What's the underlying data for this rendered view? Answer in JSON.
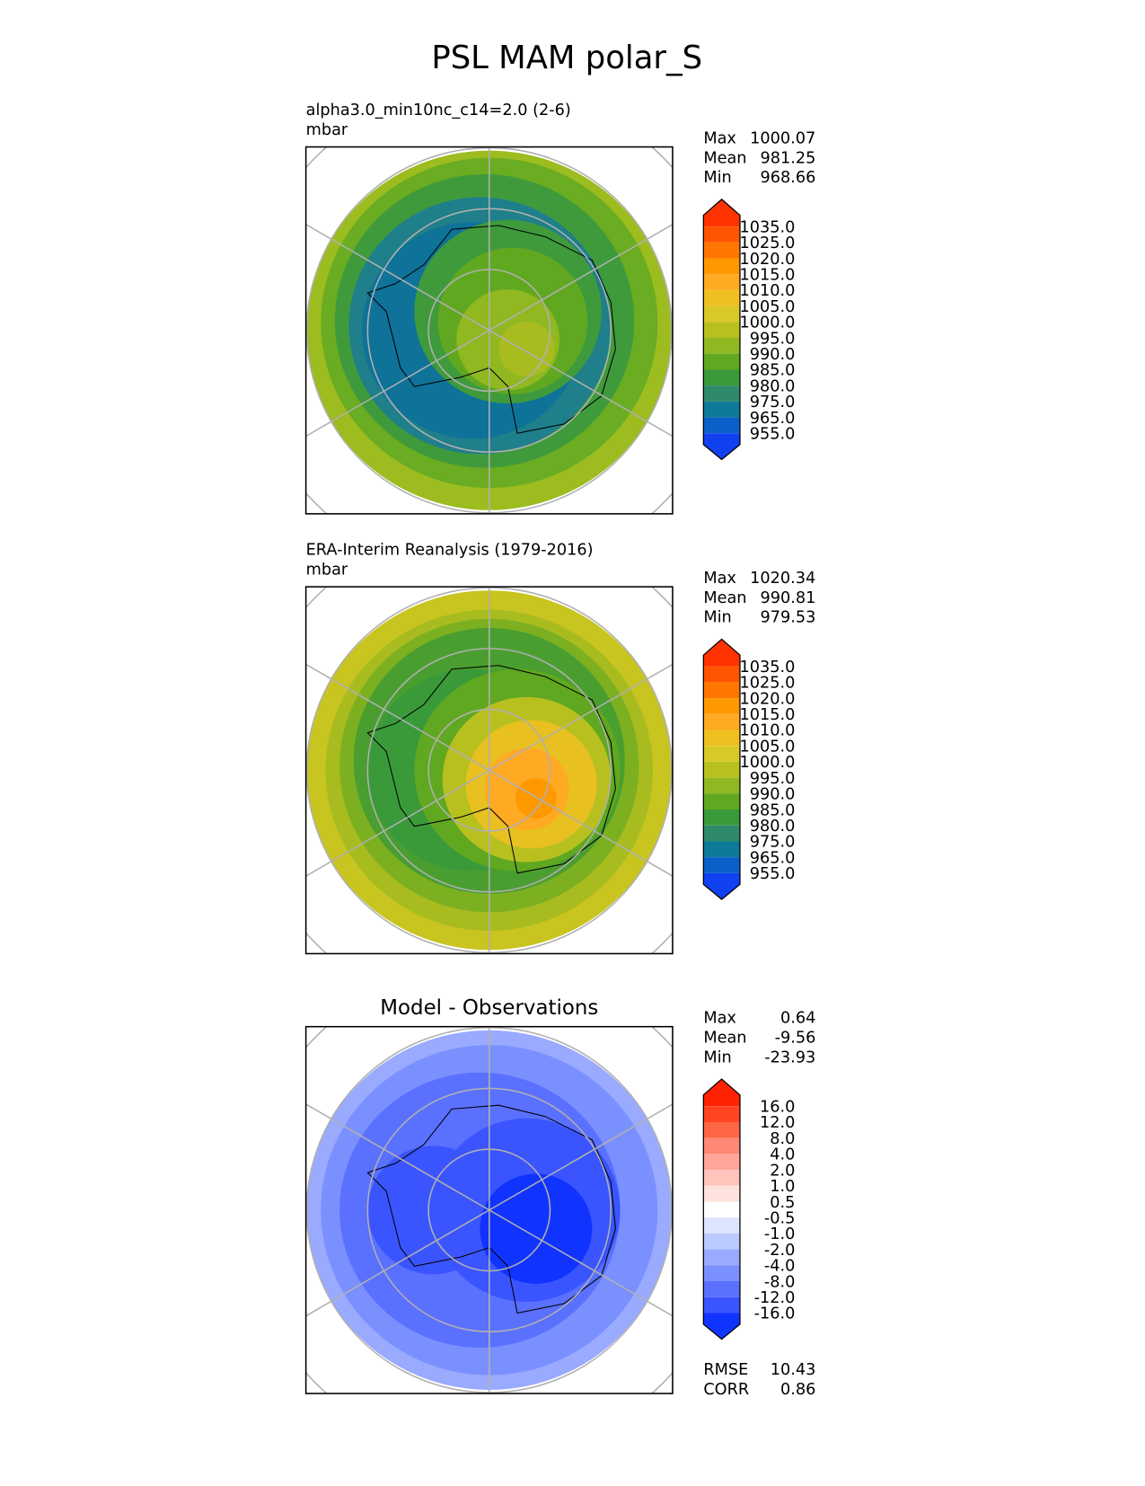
{
  "title": "PSL MAM polar_S",
  "panels": [
    {
      "title": "alpha3.0_min10nc_c14=2.0 (2-6)",
      "units": "mbar",
      "stats": [
        {
          "label": "Max",
          "value": "1000.07"
        },
        {
          "label": "Mean",
          "value": "981.25"
        },
        {
          "label": "Min",
          "value": "968.66"
        }
      ],
      "colorbar": {
        "levels": [
          "1035.0",
          "1025.0",
          "1020.0",
          "1015.0",
          "1010.0",
          "1005.0",
          "1000.0",
          "995.0",
          "990.0",
          "985.0",
          "980.0",
          "975.0",
          "965.0",
          "955.0"
        ],
        "colors": [
          "#ff3300",
          "#ff5500",
          "#ff7700",
          "#ff9900",
          "#ffaa22",
          "#f0c020",
          "#d8c828",
          "#b8c020",
          "#90b820",
          "#60a820",
          "#3a9a3a",
          "#2e8a6a",
          "#0e7a9a",
          "#0a60c8",
          "#1040f0"
        ]
      }
    },
    {
      "title": "ERA-Interim Reanalysis (1979-2016)",
      "units": "mbar",
      "stats": [
        {
          "label": "Max",
          "value": "1020.34"
        },
        {
          "label": "Mean",
          "value": "990.81"
        },
        {
          "label": "Min",
          "value": "979.53"
        }
      ],
      "colorbar": {
        "levels": [
          "1035.0",
          "1025.0",
          "1020.0",
          "1015.0",
          "1010.0",
          "1005.0",
          "1000.0",
          "995.0",
          "990.0",
          "985.0",
          "980.0",
          "975.0",
          "965.0",
          "955.0"
        ],
        "colors": [
          "#ff3300",
          "#ff5500",
          "#ff7700",
          "#ff9900",
          "#ffaa22",
          "#f0c020",
          "#d8c828",
          "#b8c020",
          "#90b820",
          "#60a820",
          "#3a9a3a",
          "#2e8a6a",
          "#0e7a9a",
          "#0a60c8",
          "#1040f0"
        ]
      }
    },
    {
      "title": "Model - Observations",
      "stats": [
        {
          "label": "Max",
          "value": "0.64"
        },
        {
          "label": "Mean",
          "value": "-9.56"
        },
        {
          "label": "Min",
          "value": "-23.93"
        }
      ],
      "colorbar": {
        "levels": [
          "16.0",
          "12.0",
          "8.0",
          "4.0",
          "2.0",
          "1.0",
          "0.5",
          "-0.5",
          "-1.0",
          "-2.0",
          "-4.0",
          "-8.0",
          "-12.0",
          "-16.0"
        ],
        "colors": [
          "#ff2200",
          "#ff4422",
          "#ff6644",
          "#ff8877",
          "#ffa599",
          "#ffc4bb",
          "#ffe2dd",
          "#ffffff",
          "#dde4ff",
          "#bbcaff",
          "#99aaff",
          "#7b90ff",
          "#5a70ff",
          "#3a55ff",
          "#1133ff"
        ]
      },
      "extra": [
        {
          "label": "RMSE",
          "value": "10.43"
        },
        {
          "label": "CORR",
          "value": "0.86"
        }
      ]
    }
  ]
}
